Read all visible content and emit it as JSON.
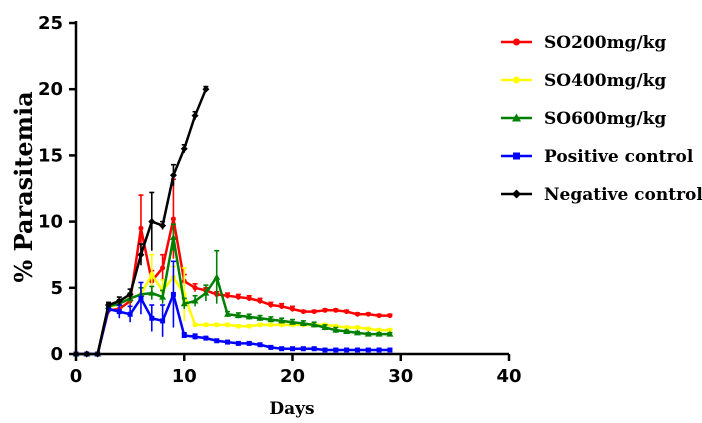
{
  "chart_data": {
    "type": "line",
    "xlabel": "Days",
    "ylabel": "% Parasitemia",
    "xlim": [
      0,
      40
    ],
    "ylim": [
      0,
      25
    ],
    "xticks": [
      0,
      10,
      20,
      30,
      40
    ],
    "yticks": [
      0,
      5,
      10,
      15,
      20,
      25
    ],
    "grid": false,
    "legend_position": "top-right",
    "series": [
      {
        "name": "SO200mg/kg",
        "color": "#ff0000",
        "marker": "circle",
        "x": [
          0,
          1,
          2,
          3,
          4,
          5,
          6,
          7,
          8,
          9,
          10,
          11,
          12,
          13,
          14,
          15,
          16,
          17,
          18,
          19,
          20,
          21,
          22,
          23,
          24,
          25,
          26,
          27,
          28,
          29
        ],
        "y": [
          0,
          0,
          0,
          3.3,
          3.4,
          4.0,
          9.5,
          5.5,
          6.5,
          10.2,
          5.5,
          5.0,
          4.8,
          4.5,
          4.4,
          4.3,
          4.2,
          4.0,
          3.7,
          3.6,
          3.4,
          3.2,
          3.2,
          3.3,
          3.3,
          3.2,
          3.0,
          3.0,
          2.9,
          2.9
        ],
        "error": [
          0,
          0,
          0,
          0.3,
          0.3,
          0.4,
          2.5,
          0.8,
          1.0,
          3.0,
          0.5,
          0.3,
          0.2,
          0.2,
          0.2,
          0.2,
          0.2,
          0.2,
          0.2,
          0.2,
          0.2,
          0.1,
          0.1,
          0.1,
          0.1,
          0.1,
          0.1,
          0.1,
          0.1,
          0.1
        ]
      },
      {
        "name": "SO400mg/kg",
        "color": "#ffff00",
        "marker": "circle",
        "x": [
          0,
          1,
          2,
          3,
          4,
          5,
          6,
          7,
          8,
          9,
          10,
          11,
          12,
          13,
          14,
          15,
          16,
          17,
          18,
          19,
          20,
          21,
          22,
          23,
          24,
          25,
          26,
          27,
          28,
          29
        ],
        "y": [
          0,
          0,
          0,
          3.5,
          3.8,
          4.2,
          4.5,
          6.0,
          4.8,
          5.8,
          4.5,
          2.2,
          2.2,
          2.2,
          2.2,
          2.1,
          2.1,
          2.2,
          2.2,
          2.2,
          2.2,
          2.2,
          2.2,
          2.2,
          2.1,
          2.0,
          2.0,
          1.9,
          1.8,
          1.8
        ],
        "error": [
          0,
          0,
          0,
          0.2,
          0.3,
          0.4,
          0.5,
          1.5,
          0.8,
          0.8,
          2.0,
          0.1,
          0.1,
          0.1,
          0.1,
          0.1,
          0.1,
          0.1,
          0.1,
          0.1,
          0.1,
          0.1,
          0.1,
          0.1,
          0.1,
          0.1,
          0.1,
          0.1,
          0.1,
          0.1
        ]
      },
      {
        "name": "SO600mg/kg",
        "color": "#008000",
        "marker": "triangle",
        "x": [
          0,
          1,
          2,
          3,
          4,
          5,
          6,
          7,
          8,
          9,
          10,
          11,
          12,
          13,
          14,
          15,
          16,
          17,
          18,
          19,
          20,
          21,
          22,
          23,
          24,
          25,
          26,
          27,
          28,
          29
        ],
        "y": [
          0,
          0,
          0,
          3.6,
          3.8,
          4.2,
          4.5,
          4.6,
          4.3,
          8.8,
          3.8,
          4.0,
          4.6,
          5.8,
          3.0,
          2.9,
          2.8,
          2.7,
          2.6,
          2.5,
          2.4,
          2.3,
          2.2,
          2.0,
          1.8,
          1.7,
          1.6,
          1.5,
          1.5,
          1.5
        ],
        "error": [
          0,
          0,
          0,
          0.2,
          0.3,
          0.4,
          0.5,
          0.5,
          0.5,
          1.0,
          0.4,
          0.4,
          0.6,
          2.0,
          0.2,
          0.2,
          0.2,
          0.2,
          0.2,
          0.2,
          0.2,
          0.2,
          0.2,
          0.2,
          0.2,
          0.1,
          0.1,
          0.1,
          0.1,
          0.1
        ]
      },
      {
        "name": "Positive control",
        "color": "#0000ff",
        "marker": "square",
        "x": [
          0,
          1,
          2,
          3,
          4,
          5,
          6,
          7,
          8,
          9,
          10,
          11,
          12,
          13,
          14,
          15,
          16,
          17,
          18,
          19,
          20,
          21,
          22,
          23,
          24,
          25,
          26,
          27,
          28,
          29
        ],
        "y": [
          0,
          0,
          0,
          3.4,
          3.2,
          3.0,
          4.2,
          2.7,
          2.5,
          4.5,
          1.4,
          1.3,
          1.2,
          1.0,
          0.9,
          0.8,
          0.8,
          0.7,
          0.5,
          0.4,
          0.4,
          0.4,
          0.4,
          0.3,
          0.3,
          0.3,
          0.3,
          0.3,
          0.3,
          0.3
        ],
        "error": [
          0,
          0,
          0,
          0.3,
          0.5,
          0.6,
          1.2,
          1.0,
          1.2,
          2.5,
          0.2,
          0.2,
          0.1,
          0.1,
          0.1,
          0.1,
          0.1,
          0.1,
          0.1,
          0.1,
          0.1,
          0.1,
          0.1,
          0.1,
          0.1,
          0.1,
          0.1,
          0.1,
          0.1,
          0.1
        ]
      },
      {
        "name": "Negative control",
        "color": "#000000",
        "marker": "diamond",
        "x": [
          0,
          1,
          2,
          3,
          4,
          5,
          6,
          7,
          8,
          9,
          10,
          11,
          12
        ],
        "y": [
          0,
          0,
          0,
          3.7,
          4.0,
          4.5,
          7.5,
          10.0,
          9.7,
          13.5,
          15.5,
          18.0,
          20.0
        ],
        "error": [
          0,
          0,
          0,
          0.2,
          0.3,
          0.4,
          0.8,
          2.2,
          0.3,
          0.8,
          0.3,
          0.3,
          0.2
        ]
      }
    ]
  }
}
